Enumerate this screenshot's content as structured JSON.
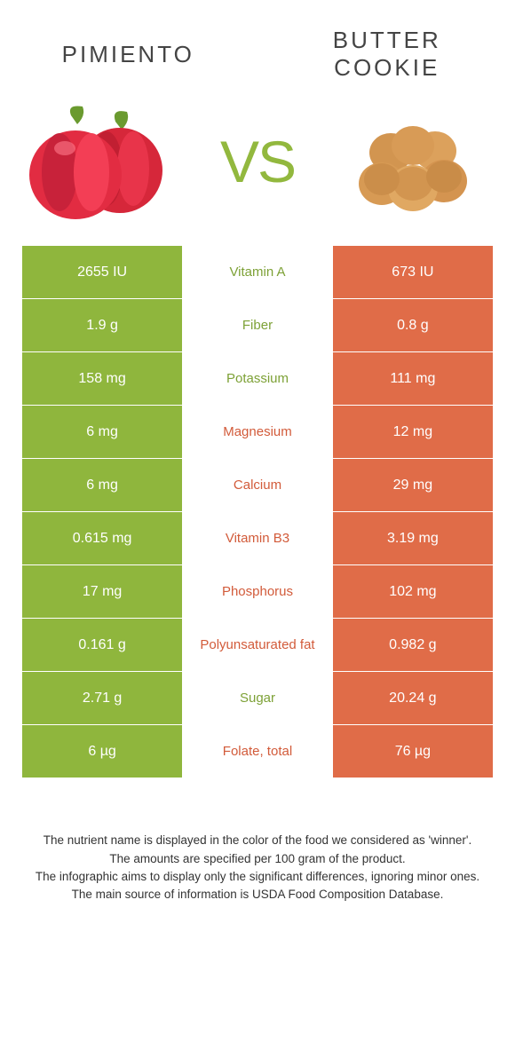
{
  "header": {
    "left_title": "PIMIENTO",
    "right_title": "BUTTER COOKIE",
    "vs_text": "VS"
  },
  "colors": {
    "green": "#8fb63d",
    "orange": "#e06c48",
    "mid_green": "#7da136",
    "mid_orange": "#d25b3a",
    "text": "#333333",
    "bg": "#ffffff"
  },
  "rows": [
    {
      "left": "2655 IU",
      "label": "Vitamin A",
      "winner": "green",
      "right": "673 IU"
    },
    {
      "left": "1.9 g",
      "label": "Fiber",
      "winner": "green",
      "right": "0.8 g"
    },
    {
      "left": "158 mg",
      "label": "Potassium",
      "winner": "green",
      "right": "111 mg"
    },
    {
      "left": "6 mg",
      "label": "Magnesium",
      "winner": "orange",
      "right": "12 mg"
    },
    {
      "left": "6 mg",
      "label": "Calcium",
      "winner": "orange",
      "right": "29 mg"
    },
    {
      "left": "0.615 mg",
      "label": "Vitamin B3",
      "winner": "orange",
      "right": "3.19 mg"
    },
    {
      "left": "17 mg",
      "label": "Phosphorus",
      "winner": "orange",
      "right": "102 mg"
    },
    {
      "left": "0.161 g",
      "label": "Polyunsaturated fat",
      "winner": "orange",
      "right": "0.982 g"
    },
    {
      "left": "2.71 g",
      "label": "Sugar",
      "winner": "green",
      "right": "20.24 g"
    },
    {
      "left": "6 µg",
      "label": "Folate, total",
      "winner": "orange",
      "right": "76 µg"
    }
  ],
  "footer": {
    "line1": "The nutrient name is displayed in the color of the food we considered as 'winner'.",
    "line2": "The amounts are specified per 100 gram of the product.",
    "line3": "The infographic aims to display only the significant differences, ignoring minor ones.",
    "line4": "The main source of information is USDA Food Composition Database."
  },
  "fontsize": {
    "title": 26,
    "vs": 66,
    "cell": 16,
    "mid": 15,
    "footer": 13.5
  }
}
